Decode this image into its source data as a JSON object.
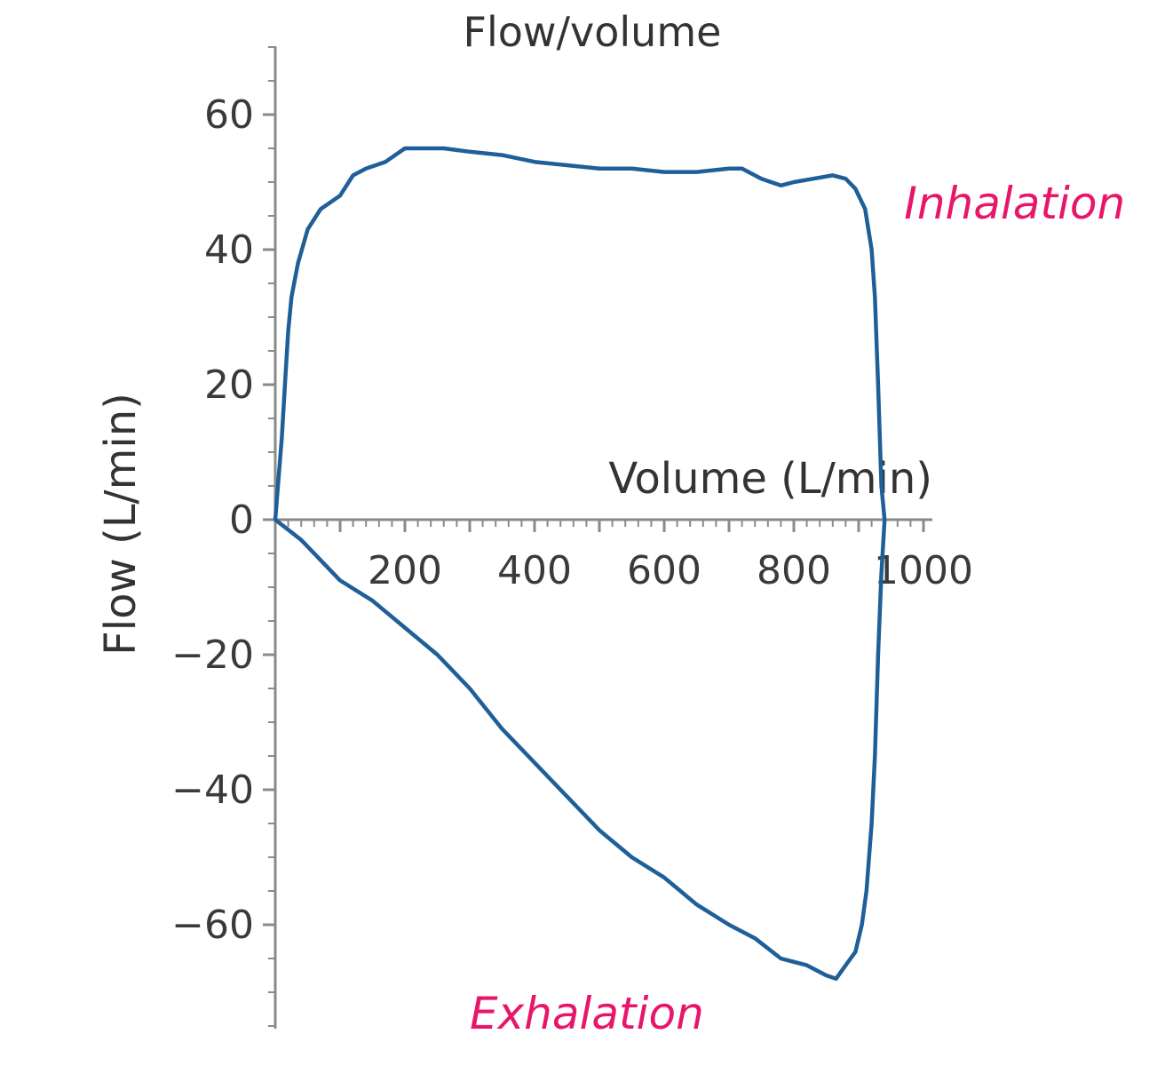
{
  "chart_data": {
    "type": "line",
    "title": "Flow/volume",
    "xlabel": "Volume (L/min)",
    "ylabel": "Flow (L/min)",
    "xlim": [
      0,
      1000
    ],
    "ylim": [
      -75,
      70
    ],
    "x_ticks": [
      200,
      400,
      600,
      800,
      1000
    ],
    "x_tick_labels": [
      "200",
      "400",
      "600",
      "800",
      "1000"
    ],
    "y_ticks": [
      60,
      40,
      20,
      0,
      -20,
      -40,
      -60
    ],
    "y_tick_labels": [
      "60",
      "40",
      "20",
      "0",
      "−20",
      "−40",
      "−60"
    ],
    "grid": false,
    "annotations": [
      {
        "text": "Inhalation",
        "x": 970,
        "y": 47
      },
      {
        "text": "Exhalation",
        "x": 300,
        "y": -73
      }
    ],
    "series": [
      {
        "color": "#1f5f99",
        "x": [
          0,
          5,
          10,
          15,
          20,
          25,
          35,
          50,
          70,
          100,
          120,
          140,
          170,
          200,
          220,
          260,
          300,
          350,
          400,
          450,
          500,
          550,
          600,
          650,
          700,
          720,
          750,
          780,
          800,
          830,
          860,
          880,
          895,
          910,
          920,
          925,
          930,
          935,
          940,
          935,
          930,
          925,
          920,
          912,
          905,
          895,
          880,
          865,
          850,
          820,
          780,
          740,
          700,
          650,
          600,
          550,
          500,
          450,
          400,
          350,
          300,
          250,
          200,
          150,
          100,
          70,
          40,
          20,
          0
        ],
        "y": [
          0,
          6,
          12,
          20,
          28,
          33,
          38,
          43,
          46,
          48,
          51,
          52,
          53,
          55,
          55,
          55,
          54.5,
          54,
          53,
          52.5,
          52,
          52,
          51.5,
          51.5,
          52,
          52,
          50.5,
          49.5,
          50,
          50.5,
          51,
          50.5,
          49,
          46,
          40,
          33,
          20,
          5,
          0,
          -8,
          -20,
          -35,
          -45,
          -55,
          -60,
          -64,
          -66,
          -68,
          -67.5,
          -66,
          -65,
          -62,
          -60,
          -57,
          -53,
          -50,
          -46,
          -41,
          -36,
          -31,
          -25,
          -20,
          -16,
          -12,
          -9,
          -6,
          -3,
          -1.5,
          0
        ]
      }
    ]
  }
}
